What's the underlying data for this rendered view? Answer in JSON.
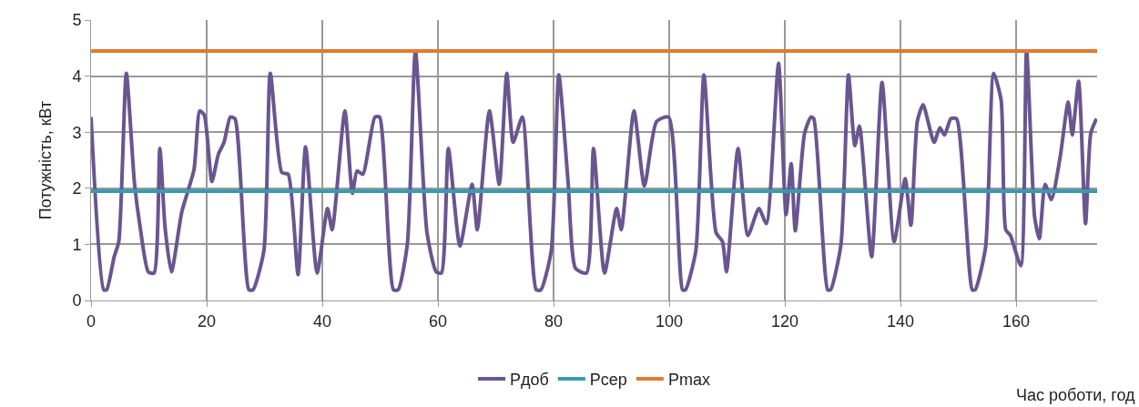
{
  "chart_data": {
    "type": "line",
    "xlabel": "Час роботи, год",
    "ylabel": "Потужність, кВт",
    "xlim": [
      0,
      174
    ],
    "xticks": [
      0,
      20,
      40,
      60,
      80,
      100,
      120,
      140,
      160
    ],
    "ylim": [
      0,
      5
    ],
    "yticks": [
      0,
      1,
      2,
      3,
      4,
      5
    ],
    "grid": true,
    "legend": "bottom",
    "marker": "none",
    "line_style": "solid",
    "series": [
      {
        "name": "Pдоб",
        "color": "#6a5590",
        "x": [
          0,
          2.2,
          2.7,
          4,
          4.8,
          6.1,
          7.5,
          8.5,
          9.9,
          10.9,
          11.9,
          12.8,
          13.9,
          15.7,
          17.8,
          18.8,
          19.6,
          20.9,
          22,
          23,
          24.1,
          24.9,
          27.3,
          28,
          29.9,
          31,
          33,
          34.1,
          35.8,
          37.1,
          39.1,
          40.9,
          41.7,
          43.9,
          45.2,
          46,
          47,
          49.1,
          49.9,
          52.3,
          53.1,
          54.7,
          56.1,
          58.1,
          59.7,
          60.6,
          61.8,
          63.8,
          65.9,
          66.8,
          68.9,
          70.6,
          71.9,
          73,
          74.6,
          77,
          77.8,
          79.6,
          80.9,
          82.5,
          83.8,
          85.7,
          86.9,
          88.8,
          90.9,
          91.7,
          93.9,
          95.7,
          97.8,
          99.9,
          102.3,
          102.8,
          104.6,
          106,
          108.1,
          109.2,
          109.9,
          111.9,
          113.6,
          115.5,
          116.8,
          118.9,
          120.2,
          121.1,
          121.8,
          123.4,
          124.5,
          125,
          127.4,
          127.9,
          129.7,
          131,
          132.1,
          132.9,
          135,
          136.8,
          138.9,
          140.8,
          141.8,
          142.9,
          143.9,
          145.8,
          146.8,
          147.6,
          148.7,
          149.7,
          152.4,
          152.9,
          154.7,
          156.1,
          157.4,
          158.2,
          159,
          160.8,
          161.8,
          163.2,
          164,
          165,
          166.1,
          167.6,
          169,
          169.7,
          170.8,
          172,
          172.9,
          173.9
        ],
        "values": [
          3.27,
          0.19,
          0.19,
          0.78,
          1.05,
          4.05,
          2.1,
          1.3,
          0.51,
          0.49,
          2.71,
          1.3,
          0.51,
          1.58,
          2.33,
          3.38,
          3.3,
          2.12,
          2.6,
          2.82,
          3.27,
          3.24,
          0.19,
          0.19,
          0.89,
          4.05,
          2.28,
          2.25,
          0.46,
          2.74,
          0.49,
          1.64,
          1.26,
          3.38,
          1.91,
          2.31,
          2.25,
          3.27,
          3.27,
          0.19,
          0.19,
          1.0,
          4.45,
          1.21,
          0.51,
          0.49,
          2.71,
          0.97,
          2.07,
          1.26,
          3.38,
          2.07,
          4.05,
          2.82,
          3.27,
          0.19,
          0.19,
          0.89,
          4.02,
          2.12,
          0.57,
          0.49,
          2.71,
          0.49,
          1.64,
          1.26,
          3.38,
          2.04,
          3.19,
          3.27,
          0.19,
          0.19,
          0.89,
          4.02,
          1.21,
          1.05,
          0.51,
          2.71,
          1.16,
          1.64,
          1.37,
          4.23,
          1.53,
          2.44,
          1.24,
          2.98,
          3.27,
          3.24,
          0.19,
          0.19,
          1.0,
          4.02,
          2.76,
          3.11,
          0.78,
          3.89,
          1.05,
          2.17,
          1.34,
          3.19,
          3.49,
          2.82,
          3.08,
          2.95,
          3.24,
          3.24,
          0.19,
          0.19,
          0.94,
          4.05,
          3.57,
          1.26,
          1.16,
          0.62,
          4.45,
          1.48,
          1.1,
          2.07,
          1.8,
          2.55,
          3.54,
          2.95,
          3.91,
          1.37,
          2.98,
          3.24
        ]
      },
      {
        "name": "Pсер",
        "color": "#3a9aaf",
        "x": [
          0,
          174
        ],
        "values": [
          1.95,
          1.95
        ]
      },
      {
        "name": "Pmax",
        "color": "#e07b30",
        "x": [
          0,
          174
        ],
        "values": [
          4.45,
          4.45
        ]
      }
    ]
  }
}
